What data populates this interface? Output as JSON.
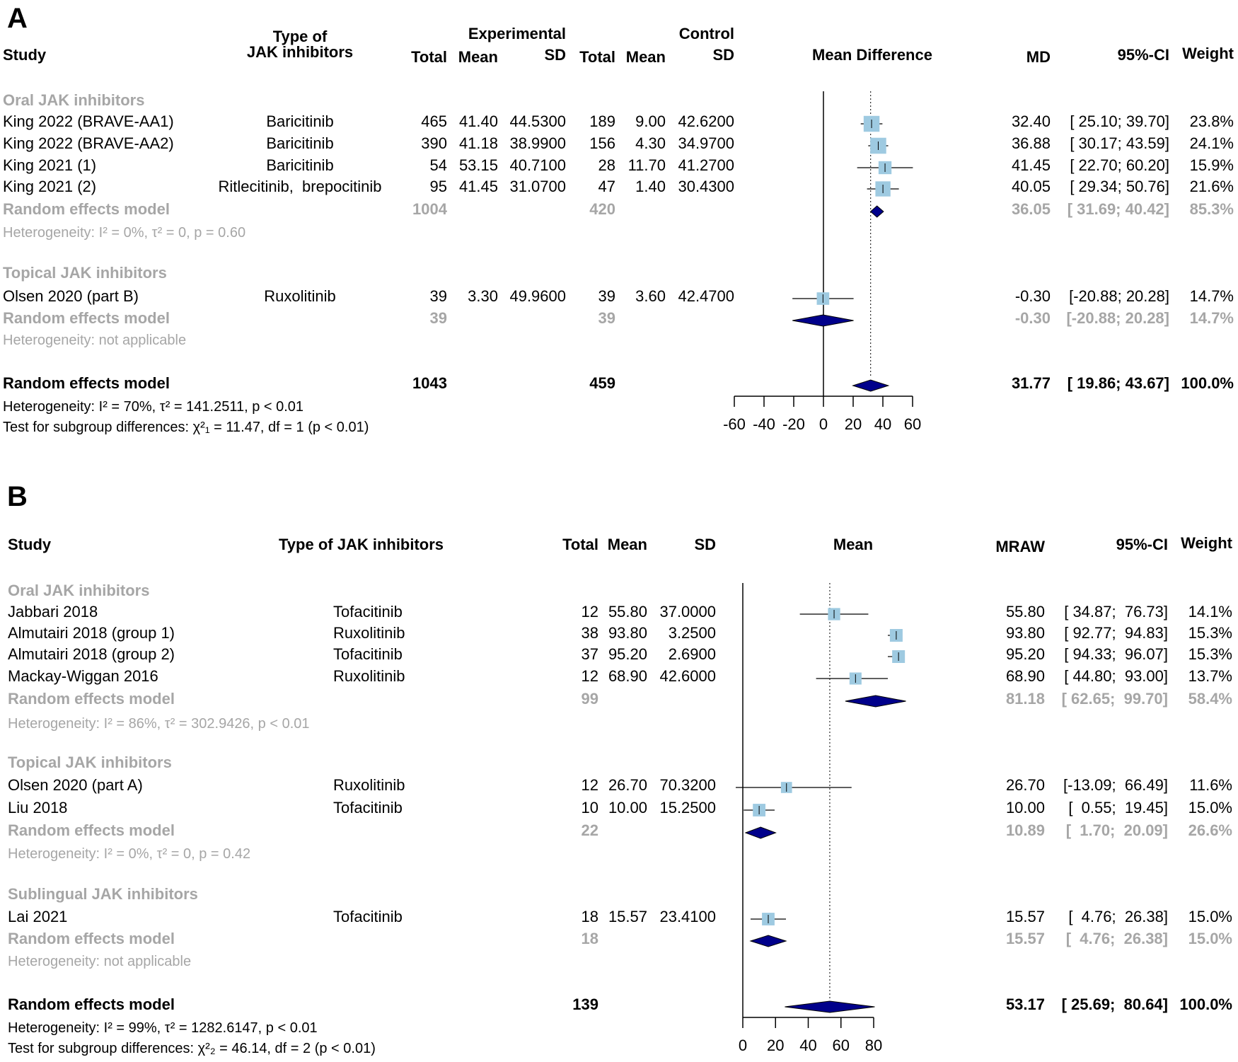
{
  "chart_data": [
    {
      "type": "forest",
      "panel_label": "A",
      "headers": {
        "study": "Study",
        "type": "Type of\nJAK inhibitors",
        "experimental": "Experimental",
        "control": "Control",
        "total": "Total",
        "mean": "Mean",
        "sd": "SD",
        "plot": "Mean Difference",
        "est": "MD",
        "ci": "95%-CI",
        "weight": "Weight"
      },
      "xlim": [
        -60,
        60
      ],
      "ticks": [
        "-60",
        "-40",
        "-20",
        "0",
        "20",
        "40",
        "60"
      ],
      "overall_estimate": 31.77,
      "rows": [
        {
          "kind": "group",
          "study": "Oral JAK inhibitors"
        },
        {
          "kind": "study",
          "study": "King 2022 (BRAVE-AA1)",
          "type": "Baricitinib",
          "e_total": "465",
          "e_mean": "41.40",
          "e_sd": "44.5300",
          "c_total": "189",
          "c_mean": "9.00",
          "c_sd": "42.6200",
          "est": "32.40",
          "ci": "[ 25.10; 39.70]",
          "weight": "23.8%"
        },
        {
          "kind": "study",
          "study": "King 2022 (BRAVE-AA2)",
          "type": "Baricitinib",
          "e_total": "390",
          "e_mean": "41.18",
          "e_sd": "38.9900",
          "c_total": "156",
          "c_mean": "4.30",
          "c_sd": "34.9700",
          "est": "36.88",
          "ci": "[ 30.17; 43.59]",
          "weight": "24.1%"
        },
        {
          "kind": "study",
          "study": "King 2021 (1)",
          "type": "Baricitinib",
          "e_total": "54",
          "e_mean": "53.15",
          "e_sd": "40.7100",
          "c_total": "28",
          "c_mean": "11.70",
          "c_sd": "41.2700",
          "est": "41.45",
          "ci": "[ 22.70; 60.20]",
          "weight": "15.9%"
        },
        {
          "kind": "study",
          "study": "King 2021 (2)",
          "type": "Ritlecitinib,  brepocitinib",
          "e_total": "95",
          "e_mean": "41.45",
          "e_sd": "31.0700",
          "c_total": "47",
          "c_mean": "1.40",
          "c_sd": "30.4300",
          "est": "40.05",
          "ci": "[ 29.34; 50.76]",
          "weight": "21.6%"
        },
        {
          "kind": "re",
          "study": "Random effects model",
          "e_total": "1004",
          "c_total": "420",
          "est": "36.05",
          "ci": "[ 31.69; 40.42]",
          "weight": "85.3%"
        },
        {
          "kind": "het",
          "study": "Heterogeneity: I² = 0%, τ² = 0, p = 0.60"
        },
        {
          "kind": "group",
          "study": "Topical JAK inhibitors"
        },
        {
          "kind": "study",
          "study": "Olsen 2020 (part B)",
          "type": "Ruxolitinib",
          "e_total": "39",
          "e_mean": "3.30",
          "e_sd": "49.9600",
          "c_total": "39",
          "c_mean": "3.60",
          "c_sd": "42.4700",
          "est": "-0.30",
          "ci": "[-20.88; 20.28]",
          "weight": "14.7%"
        },
        {
          "kind": "re",
          "study": "Random effects model",
          "e_total": "39",
          "c_total": "39",
          "est": "-0.30",
          "ci": "[-20.88; 20.28]",
          "weight": "14.7%"
        },
        {
          "kind": "het",
          "study": "Heterogeneity: not applicable"
        },
        {
          "kind": "overall",
          "study": "Random effects model",
          "e_total": "1043",
          "c_total": "459",
          "est": "31.77",
          "ci": "[ 19.86; 43.67]",
          "weight": "100.0%"
        },
        {
          "kind": "note",
          "study": "Heterogeneity: I² = 70%, τ² = 141.2511, p < 0.01"
        },
        {
          "kind": "note",
          "study": "Test for subgroup differences: χ²₁ = 11.47, df = 1 (p < 0.01)"
        }
      ]
    },
    {
      "type": "forest",
      "panel_label": "B",
      "headers": {
        "study": "Study",
        "type": "Type of JAK inhibitors",
        "total": "Total",
        "mean": "Mean",
        "sd": "SD",
        "plot": "Mean",
        "est": "MRAW",
        "ci": "95%-CI",
        "weight": "Weight"
      },
      "xlim": [
        0,
        80
      ],
      "ticks": [
        "0",
        "20",
        "40",
        "60",
        "80"
      ],
      "overall_estimate": 53.17,
      "rows": [
        {
          "kind": "group",
          "study": "Oral JAK inhibitors"
        },
        {
          "kind": "study",
          "study": "Jabbari 2018",
          "type": "Tofacitinib",
          "e_total": "12",
          "e_mean": "55.80",
          "e_sd": "37.0000",
          "est": "55.80",
          "ci": "[ 34.87;  76.73]",
          "weight": "14.1%"
        },
        {
          "kind": "study",
          "study": "Almutairi 2018 (group 1)",
          "type": "Ruxolitinib",
          "e_total": "38",
          "e_mean": "93.80",
          "e_sd": "3.2500",
          "est": "93.80",
          "ci": "[ 92.77;  94.83]",
          "weight": "15.3%"
        },
        {
          "kind": "study",
          "study": "Almutairi 2018 (group 2)",
          "type": "Tofacitinib",
          "e_total": "37",
          "e_mean": "95.20",
          "e_sd": "2.6900",
          "est": "95.20",
          "ci": "[ 94.33;  96.07]",
          "weight": "15.3%"
        },
        {
          "kind": "study",
          "study": "Mackay-Wiggan 2016",
          "type": "Ruxolitinib",
          "e_total": "12",
          "e_mean": "68.90",
          "e_sd": "42.6000",
          "est": "68.90",
          "ci": "[ 44.80;  93.00]",
          "weight": "13.7%"
        },
        {
          "kind": "re",
          "study": "Random effects model",
          "e_total": "99",
          "est": "81.18",
          "ci": "[ 62.65;  99.70]",
          "weight": "58.4%"
        },
        {
          "kind": "het",
          "study": "Heterogeneity: I² = 86%, τ² = 302.9426, p < 0.01"
        },
        {
          "kind": "group",
          "study": "Topical JAK inhibitors"
        },
        {
          "kind": "study",
          "study": "Olsen 2020 (part A)",
          "type": "Ruxolitinib",
          "e_total": "12",
          "e_mean": "26.70",
          "e_sd": "70.3200",
          "est": "26.70",
          "ci": "[-13.09;  66.49]",
          "weight": "11.6%"
        },
        {
          "kind": "study",
          "study": "Liu 2018",
          "type": "Tofacitinib",
          "e_total": "10",
          "e_mean": "10.00",
          "e_sd": "15.2500",
          "est": "10.00",
          "ci": "[  0.55;  19.45]",
          "weight": "15.0%"
        },
        {
          "kind": "re",
          "study": "Random effects model",
          "e_total": "22",
          "est": "10.89",
          "ci": "[  1.70;  20.09]",
          "weight": "26.6%"
        },
        {
          "kind": "het",
          "study": "Heterogeneity: I² = 0%, τ² = 0, p = 0.42"
        },
        {
          "kind": "group",
          "study": "Sublingual JAK inhibitors"
        },
        {
          "kind": "study",
          "study": "Lai 2021",
          "type": "Tofacitinib",
          "e_total": "18",
          "e_mean": "15.57",
          "e_sd": "23.4100",
          "est": "15.57",
          "ci": "[  4.76;  26.38]",
          "weight": "15.0%"
        },
        {
          "kind": "re",
          "study": "Random effects model",
          "e_total": "18",
          "est": "15.57",
          "ci": "[  4.76;  26.38]",
          "weight": "15.0%"
        },
        {
          "kind": "het",
          "study": "Heterogeneity: not applicable"
        },
        {
          "kind": "overall",
          "study": "Random effects model",
          "e_total": "139",
          "est": "53.17",
          "ci": "[ 25.69;  80.64]",
          "weight": "100.0%"
        },
        {
          "kind": "note",
          "study": "Heterogeneity: I² = 99%, τ² = 1282.6147, p < 0.01"
        },
        {
          "kind": "note",
          "study": "Test for subgroup differences: χ²₂ = 46.14, df = 2 (p < 0.01)"
        }
      ]
    }
  ],
  "colors": {
    "square": "#9ecae1",
    "diamond": "#00008b",
    "subgroup_text": "#a6a6a6"
  }
}
